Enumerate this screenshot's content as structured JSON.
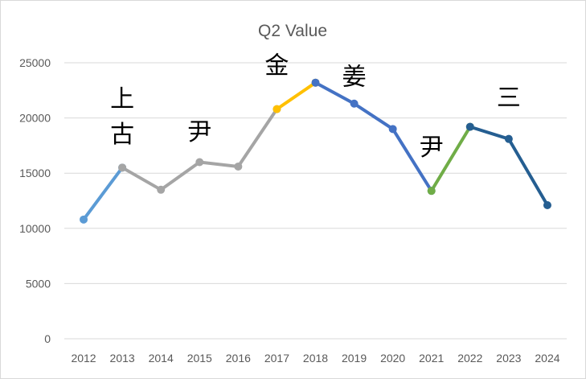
{
  "chart_data": {
    "type": "line",
    "title": "Q2 Value",
    "xlabel": "",
    "ylabel": "",
    "ylim": [
      0,
      25000
    ],
    "yticks": [
      0,
      5000,
      10000,
      15000,
      20000,
      25000
    ],
    "grid": true,
    "legend": "none",
    "x": [
      "2012",
      "2013",
      "2014",
      "2015",
      "2016",
      "2017",
      "2018",
      "2019",
      "2020",
      "2021",
      "2022",
      "2023",
      "2024"
    ],
    "series": [
      {
        "color": "#5b9bd5",
        "points": [
          {
            "x": "2012",
            "y": 10800
          },
          {
            "x": "2013",
            "y": 15500
          }
        ]
      },
      {
        "color": "#a5a5a5",
        "points": [
          {
            "x": "2013",
            "y": 15500
          },
          {
            "x": "2014",
            "y": 13500
          },
          {
            "x": "2015",
            "y": 16000
          },
          {
            "x": "2016",
            "y": 15600
          },
          {
            "x": "2017",
            "y": 20800
          }
        ]
      },
      {
        "color": "#ffc000",
        "points": [
          {
            "x": "2017",
            "y": 20800
          },
          {
            "x": "2018",
            "y": 23200
          }
        ]
      },
      {
        "color": "#4472c4",
        "points": [
          {
            "x": "2018",
            "y": 23200
          },
          {
            "x": "2019",
            "y": 21300
          },
          {
            "x": "2020",
            "y": 19000
          },
          {
            "x": "2021",
            "y": 13400
          }
        ]
      },
      {
        "color": "#70ad47",
        "points": [
          {
            "x": "2021",
            "y": 13400
          },
          {
            "x": "2022",
            "y": 19200
          }
        ]
      },
      {
        "color": "#255e91",
        "points": [
          {
            "x": "2022",
            "y": 19200
          },
          {
            "x": "2023",
            "y": 18100
          },
          {
            "x": "2024",
            "y": 12100
          }
        ]
      }
    ],
    "annotations": [
      {
        "text": "上",
        "x": "2013",
        "y": 21000
      },
      {
        "text": "古",
        "x": "2013",
        "y": 17800
      },
      {
        "text": "尹",
        "x": "2015",
        "y": 18000
      },
      {
        "text": "金",
        "x": "2017",
        "y": 24000
      },
      {
        "text": "姜",
        "x": "2019",
        "y": 23000
      },
      {
        "text": "尹",
        "x": "2021",
        "y": 16600
      },
      {
        "text": "三",
        "x": "2023",
        "y": 21100
      }
    ]
  }
}
